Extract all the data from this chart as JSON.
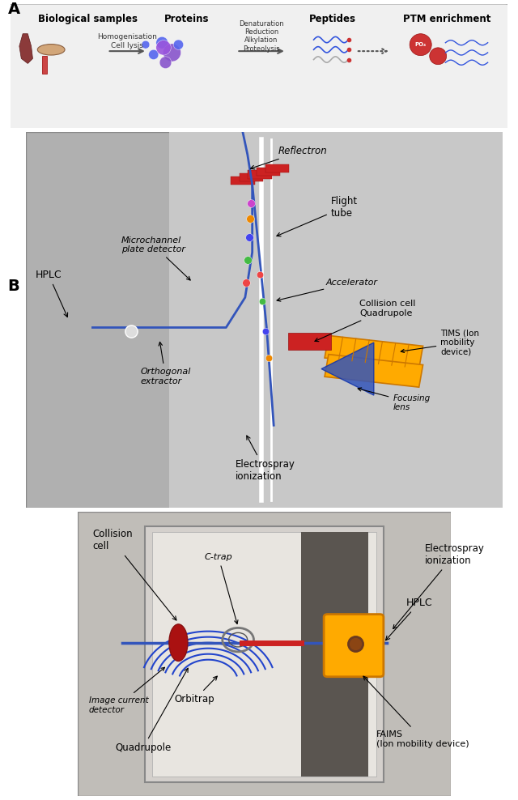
{
  "panel_A_label": "A",
  "panel_B_label": "B",
  "background_color": "#ffffff",
  "panel_bg_color": "#f0f0f0",
  "section_titles": [
    "Biological samples",
    "Proteins",
    "Peptides",
    "PTM enrichment"
  ],
  "section_subtitles": [
    "Homogenisation\nCell lysis",
    "Denaturation\nReduction\nAlkylation\nProteolysis",
    "",
    ""
  ],
  "arrow_color": "#000000",
  "blue_line_color": "#3355bb",
  "yellow_line_color": "#ffaa00",
  "red_element_color": "#cc2222",
  "orange_element_color": "#ff8800"
}
